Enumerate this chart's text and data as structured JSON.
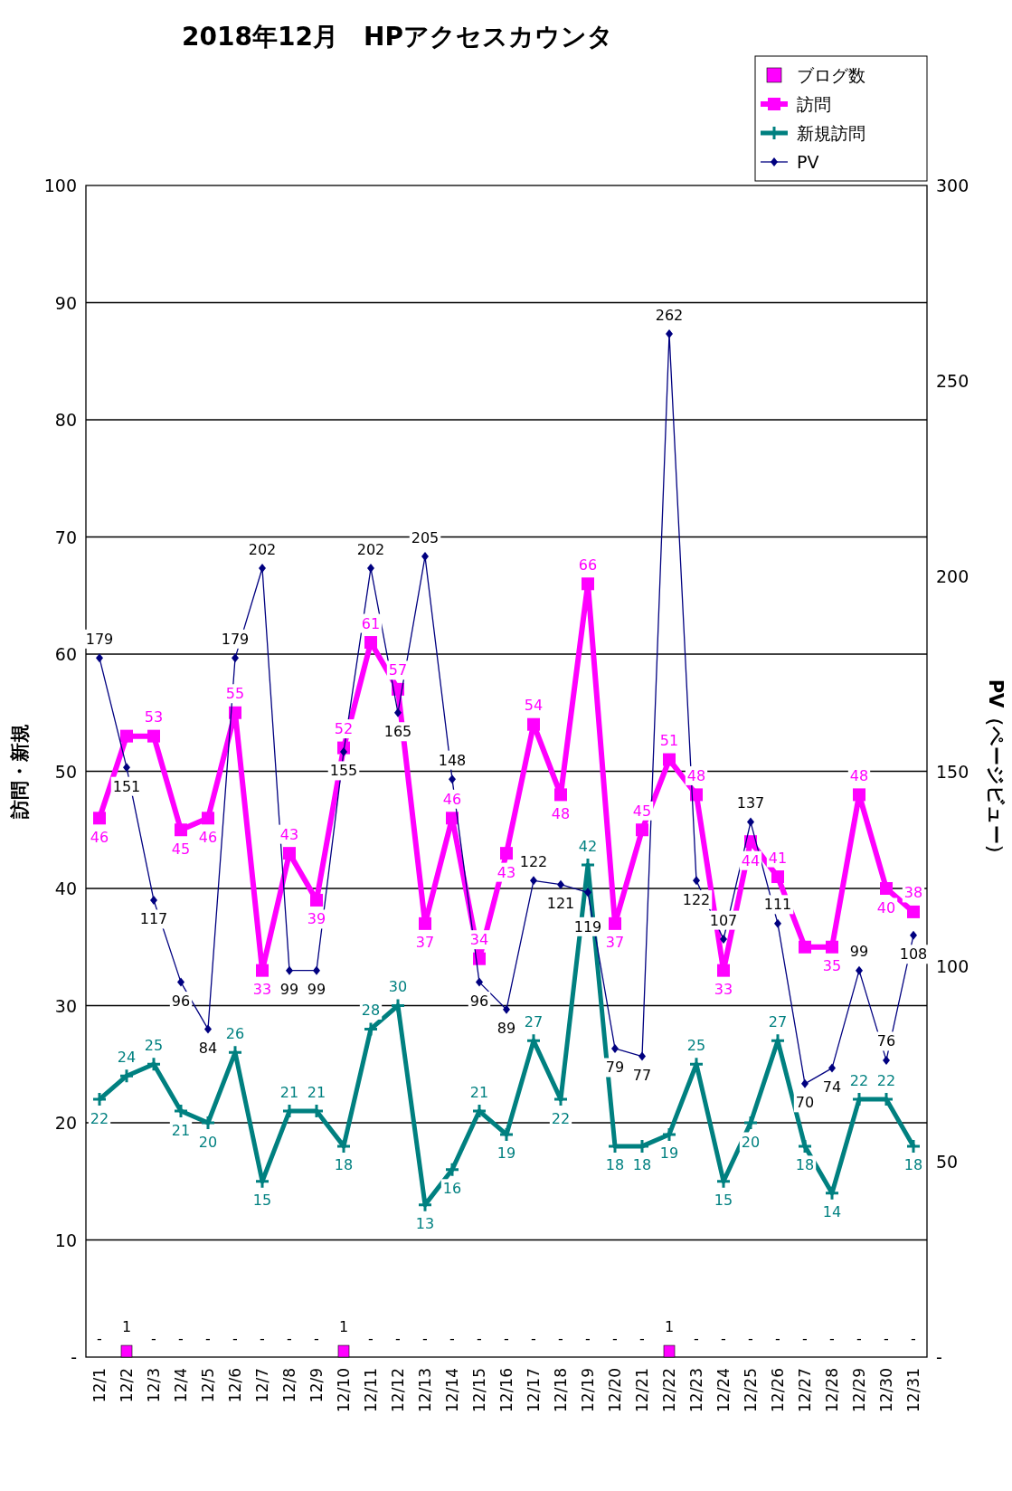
{
  "chart_data": {
    "type": "line",
    "title": "2018年12月　HPアクセスカウンタ",
    "ylabel": "訪問・新規",
    "y2label": "PV（ページビュー）",
    "categories": [
      "12/1",
      "12/2",
      "12/3",
      "12/4",
      "12/5",
      "12/6",
      "12/7",
      "12/8",
      "12/9",
      "12/10",
      "12/11",
      "12/12",
      "12/13",
      "12/14",
      "12/15",
      "12/16",
      "12/17",
      "12/18",
      "12/19",
      "12/20",
      "12/21",
      "12/22",
      "12/23",
      "12/24",
      "12/25",
      "12/26",
      "12/27",
      "12/28",
      "12/29",
      "12/30",
      "12/31"
    ],
    "series": [
      {
        "name": "ブログ数",
        "type": "bar",
        "color": "#ff00ff",
        "values": [
          0,
          1,
          0,
          0,
          0,
          0,
          0,
          0,
          0,
          1,
          0,
          0,
          0,
          0,
          0,
          0,
          0,
          0,
          0,
          0,
          0,
          1,
          0,
          0,
          0,
          0,
          0,
          0,
          0,
          0,
          0
        ],
        "value_labels": [
          "-",
          "1",
          "-",
          "-",
          "-",
          "-",
          "-",
          "-",
          "-",
          "1",
          "-",
          "-",
          "-",
          "-",
          "-",
          "-",
          "-",
          "-",
          "-",
          "-",
          "-",
          "1",
          "-",
          "-",
          "-",
          "-",
          "-",
          "-",
          "-",
          "-",
          "-"
        ]
      },
      {
        "name": "訪問",
        "type": "line",
        "color": "#ff00ff",
        "marker": "square",
        "values": [
          46,
          53,
          53,
          45,
          46,
          55,
          33,
          43,
          39,
          52,
          61,
          57,
          37,
          46,
          34,
          43,
          54,
          48,
          66,
          37,
          45,
          51,
          48,
          33,
          44,
          41,
          35,
          35,
          48,
          40,
          38
        ],
        "value_labels": [
          "46",
          null,
          "53",
          "45",
          "46",
          "55",
          "33",
          "43",
          "39",
          "52",
          "61",
          "57",
          "37",
          "46",
          "34",
          "43",
          "54",
          "48",
          "66",
          "37",
          "45",
          "51",
          "48",
          "33",
          "44",
          "41",
          null,
          "35",
          "48",
          "40",
          "38"
        ]
      },
      {
        "name": "新規訪問",
        "type": "line",
        "color": "#008080",
        "marker": "cross",
        "values": [
          22,
          24,
          25,
          21,
          20,
          26,
          15,
          21,
          21,
          18,
          28,
          30,
          13,
          16,
          21,
          19,
          27,
          22,
          42,
          18,
          18,
          19,
          25,
          15,
          20,
          27,
          18,
          14,
          22,
          22,
          18
        ]
      },
      {
        "name": "PV",
        "type": "line",
        "color": "#000080",
        "marker": "diamond",
        "axis": "y2",
        "values": [
          179,
          151,
          117,
          96,
          84,
          179,
          202,
          99,
          99,
          155,
          202,
          165,
          205,
          148,
          96,
          89,
          122,
          121,
          119,
          79,
          77,
          262,
          122,
          107,
          137,
          111,
          70,
          74,
          99,
          76,
          108
        ]
      }
    ],
    "ylim": [
      0,
      100
    ],
    "yticks": [
      {
        "value": 0,
        "label": "-"
      },
      10,
      20,
      30,
      40,
      50,
      60,
      70,
      80,
      90,
      100
    ],
    "y2lim": [
      0,
      300
    ],
    "y2ticks": [
      {
        "value": 0,
        "label": "-"
      },
      50,
      100,
      150,
      200,
      250,
      300
    ],
    "grid": "y",
    "legend": "top right",
    "data_labels": true,
    "line_style": "solid"
  }
}
